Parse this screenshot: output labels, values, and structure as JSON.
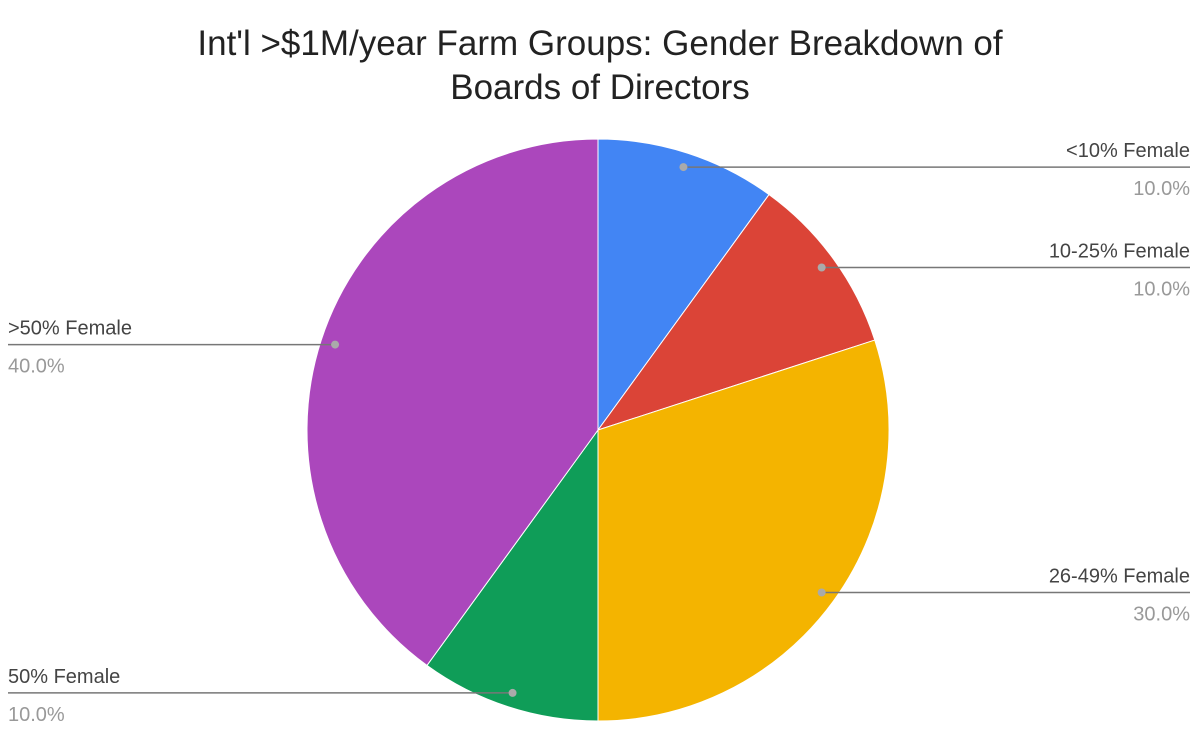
{
  "chart_data": {
    "type": "pie",
    "title": "Int'l >$1M/year Farm Groups: Gender Breakdown of Boards of Directors",
    "categories": [
      "<10% Female",
      "10-25% Female",
      "26-49% Female",
      "50% Female",
      ">50% Female"
    ],
    "values": [
      10,
      10,
      30,
      10,
      40
    ],
    "value_labels": [
      "10.0%",
      "10.0%",
      "30.0%",
      "10.0%",
      "40.0%"
    ],
    "colors": [
      "#4285f4",
      "#db4437",
      "#f4b400",
      "#0f9d58",
      "#ab47bc"
    ]
  }
}
